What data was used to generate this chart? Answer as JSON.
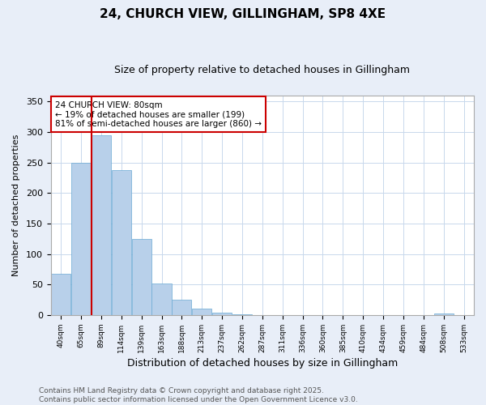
{
  "title": "24, CHURCH VIEW, GILLINGHAM, SP8 4XE",
  "subtitle": "Size of property relative to detached houses in Gillingham",
  "xlabel": "Distribution of detached houses by size in Gillingham",
  "ylabel": "Number of detached properties",
  "categories": [
    "40sqm",
    "65sqm",
    "89sqm",
    "114sqm",
    "139sqm",
    "163sqm",
    "188sqm",
    "213sqm",
    "237sqm",
    "262sqm",
    "287sqm",
    "311sqm",
    "336sqm",
    "360sqm",
    "385sqm",
    "410sqm",
    "434sqm",
    "459sqm",
    "484sqm",
    "508sqm",
    "533sqm"
  ],
  "values": [
    68,
    250,
    295,
    238,
    125,
    52,
    25,
    11,
    4,
    1,
    0,
    0,
    0,
    0,
    0,
    0,
    0,
    0,
    0,
    2,
    0
  ],
  "bar_color": "#b8d0ea",
  "bar_edge_color": "#6aaad4",
  "vline_x": 1.5,
  "vline_color": "#cc0000",
  "annotation_text": "24 CHURCH VIEW: 80sqm\n← 19% of detached houses are smaller (199)\n81% of semi-detached houses are larger (860) →",
  "annotation_box_color": "#ffffff",
  "annotation_box_edge_color": "#cc0000",
  "ylim": [
    0,
    360
  ],
  "yticks": [
    0,
    50,
    100,
    150,
    200,
    250,
    300,
    350
  ],
  "footer_text": "Contains HM Land Registry data © Crown copyright and database right 2025.\nContains public sector information licensed under the Open Government Licence v3.0.",
  "bg_color": "#e8eef8",
  "plot_bg_color": "#ffffff",
  "grid_color": "#c8d8ec",
  "title_fontsize": 11,
  "subtitle_fontsize": 9,
  "annotation_fontsize": 7.5,
  "footer_fontsize": 6.5,
  "xlabel_fontsize": 9,
  "ylabel_fontsize": 8
}
